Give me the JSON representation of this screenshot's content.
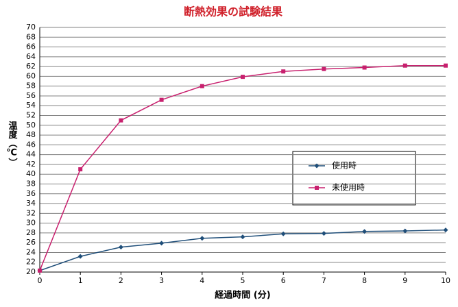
{
  "chart_data": {
    "type": "line",
    "title": "断熱効果の試験結果",
    "x_label": "経過時間 (分)",
    "y_label": "温度（℃）",
    "x": [
      0,
      1,
      2,
      3,
      4,
      5,
      6,
      7,
      8,
      9,
      10
    ],
    "series": [
      {
        "name": "使用時",
        "color": "#1f4e79",
        "marker": "diamond",
        "values": [
          20.3,
          23.2,
          25.1,
          25.9,
          26.9,
          27.2,
          27.8,
          27.9,
          28.3,
          28.4,
          28.6
        ]
      },
      {
        "name": "未使用時",
        "color": "#c8206e",
        "marker": "square",
        "values": [
          20.3,
          41,
          51,
          55.2,
          58,
          59.9,
          61,
          61.5,
          61.8,
          62.2,
          62.2
        ]
      }
    ],
    "xlim": [
      0,
      10
    ],
    "xticks": [
      0,
      1,
      2,
      3,
      4,
      5,
      6,
      7,
      8,
      9,
      10
    ],
    "ylim": [
      20,
      70
    ],
    "yticks": [
      20,
      22,
      24,
      26,
      28,
      30,
      32,
      34,
      36,
      38,
      40,
      42,
      44,
      46,
      48,
      50,
      52,
      54,
      56,
      58,
      60,
      62,
      64,
      66,
      68,
      70
    ],
    "grid": true
  }
}
